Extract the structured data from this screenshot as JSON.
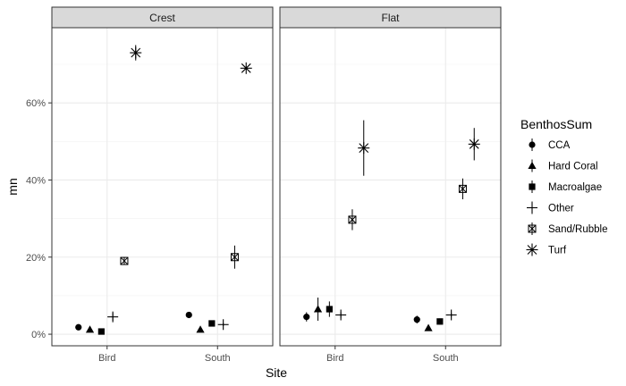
{
  "chart_data": {
    "type": "scatter",
    "xlabel": "Site",
    "ylabel": "mn",
    "ylim": [
      -0.03,
      0.795
    ],
    "yticks": [
      0,
      0.2,
      0.4,
      0.6
    ],
    "ytick_labels": [
      "0%",
      "20%",
      "40%",
      "60%"
    ],
    "categories": [
      "Bird",
      "South"
    ],
    "panels": [
      "Crest",
      "Flat"
    ],
    "legend": {
      "title": "BenthosSum",
      "position": "right",
      "entries": [
        "CCA",
        "Hard Coral",
        "Macroalgae",
        "Other",
        "Sand/Rubble",
        "Turf"
      ]
    },
    "grid": true,
    "series": [
      {
        "name": "CCA",
        "shape": "circle",
        "points": [
          {
            "panel": "Crest",
            "x": "Bird",
            "y": 0.018,
            "err": 0.004
          },
          {
            "panel": "Crest",
            "x": "South",
            "y": 0.05,
            "err": 0.008
          },
          {
            "panel": "Flat",
            "x": "Bird",
            "y": 0.045,
            "err": 0.012
          },
          {
            "panel": "Flat",
            "x": "South",
            "y": 0.038,
            "err": 0.01
          }
        ]
      },
      {
        "name": "Hard Coral",
        "shape": "triangle",
        "points": [
          {
            "panel": "Crest",
            "x": "Bird",
            "y": 0.012,
            "err": 0.003
          },
          {
            "panel": "Crest",
            "x": "South",
            "y": 0.012,
            "err": 0.003
          },
          {
            "panel": "Flat",
            "x": "Bird",
            "y": 0.065,
            "err": 0.03
          },
          {
            "panel": "Flat",
            "x": "South",
            "y": 0.016,
            "err": 0.004
          }
        ]
      },
      {
        "name": "Macroalgae",
        "shape": "square",
        "points": [
          {
            "panel": "Crest",
            "x": "Bird",
            "y": 0.007,
            "err": 0.002
          },
          {
            "panel": "Crest",
            "x": "South",
            "y": 0.028,
            "err": 0.004
          },
          {
            "panel": "Flat",
            "x": "Bird",
            "y": 0.065,
            "err": 0.02
          },
          {
            "panel": "Flat",
            "x": "South",
            "y": 0.033,
            "err": 0.008
          }
        ]
      },
      {
        "name": "Other",
        "shape": "plus",
        "points": [
          {
            "panel": "Crest",
            "x": "Bird",
            "y": 0.045,
            "err": 0.01
          },
          {
            "panel": "Crest",
            "x": "South",
            "y": 0.025,
            "err": 0.004
          },
          {
            "panel": "Flat",
            "x": "Bird",
            "y": 0.05,
            "err": 0.007
          },
          {
            "panel": "Flat",
            "x": "South",
            "y": 0.05,
            "err": 0.005
          }
        ]
      },
      {
        "name": "Sand/Rubble",
        "shape": "boxcross",
        "points": [
          {
            "panel": "Crest",
            "x": "Bird",
            "y": 0.19,
            "err": 0.01
          },
          {
            "panel": "Crest",
            "x": "South",
            "y": 0.2,
            "err": 0.03
          },
          {
            "panel": "Flat",
            "x": "Bird",
            "y": 0.297,
            "err": 0.027
          },
          {
            "panel": "Flat",
            "x": "South",
            "y": 0.377,
            "err": 0.027
          }
        ]
      },
      {
        "name": "Turf",
        "shape": "asterisk",
        "points": [
          {
            "panel": "Crest",
            "x": "Bird",
            "y": 0.73,
            "err": 0.02
          },
          {
            "panel": "Crest",
            "x": "South",
            "y": 0.69,
            "err": 0.004
          },
          {
            "panel": "Flat",
            "x": "Bird",
            "y": 0.483,
            "err": 0.072
          },
          {
            "panel": "Flat",
            "x": "South",
            "y": 0.493,
            "err": 0.042
          }
        ]
      }
    ]
  }
}
